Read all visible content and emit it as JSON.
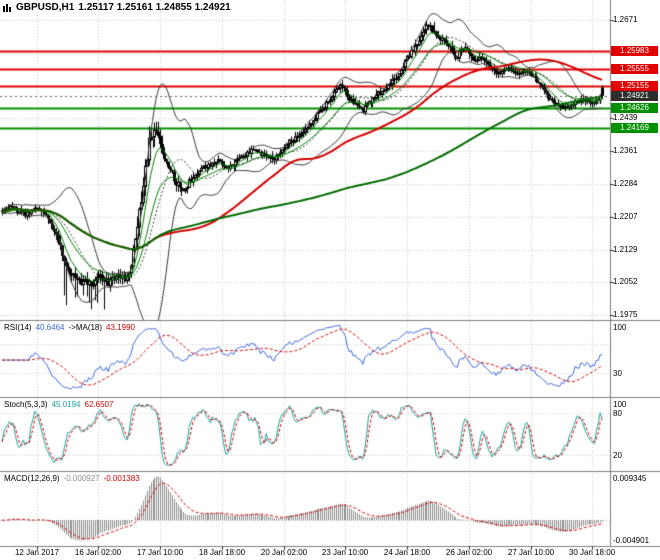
{
  "window": {
    "symbol_title": "GBPUSD,H1",
    "ohlc_text": "1.25117 1.25161 1.24855 1.24921"
  },
  "colors": {
    "background": "#ffffff",
    "grid": "#c8c8c8",
    "separator": "#7f7f7f",
    "text": "#000000",
    "candle_outline": "#000000",
    "bull_fill": "#ffffff",
    "bear_fill": "#000000",
    "bollinger": "#3a3a3a",
    "ma_red": "#d40000",
    "ma_green_fast": "#008000",
    "ma_green_slow": "#006b00",
    "resistance_line": "#e00000",
    "support_line": "#009000",
    "current_badge": "#2d2d2d",
    "rsi_line": "#4169e1",
    "rsi_ma_line": "#d40000",
    "stoch_k_line": "#1fa39b",
    "stoch_d_line": "#d40000",
    "macd_histogram": "#8e8e8e",
    "macd_signal_line": "#d40000"
  },
  "chart_data": {
    "type": "candlestick",
    "symbol": "GBPUSD",
    "timeframe": "H1",
    "bars": 312,
    "current_ohlc": {
      "open": 1.25117,
      "high": 1.25161,
      "low": 1.24855,
      "close": 1.24921
    },
    "levels": {
      "resistance": [
        "1.25983",
        "1.25555",
        "1.25155"
      ],
      "current": "1.24921",
      "support": [
        "1.24626",
        "1.24169"
      ]
    },
    "y_axis_labels": [
      "1.2671",
      "1.2594",
      "1.2516",
      "1.2439",
      "1.2361",
      "1.2284",
      "1.2207",
      "1.2129",
      "1.2052",
      "1.1975"
    ],
    "x_axis_labels": [
      "12 Jan 2017",
      "16 Jan 02:00",
      "17 Jan 10:00",
      "18 Jan 18:00",
      "20 Jan 02:00",
      "23 Jan 10:00",
      "24 Jan 18:00",
      "26 Jan 02:00",
      "27 Jan 10:00",
      "30 Jan 18:00"
    ],
    "x_tick_bars": [
      18,
      50,
      82,
      114,
      146,
      178,
      210,
      242,
      274,
      306
    ],
    "price_path": [
      [
        0.0,
        1.2218
      ],
      [
        0.018,
        1.223
      ],
      [
        0.04,
        1.2212
      ],
      [
        0.06,
        1.2228
      ],
      [
        0.082,
        1.22
      ],
      [
        0.095,
        1.2152
      ],
      [
        0.11,
        1.2092
      ],
      [
        0.125,
        1.206
      ],
      [
        0.15,
        1.2046
      ],
      [
        0.165,
        1.2066
      ],
      [
        0.18,
        1.2052
      ],
      [
        0.195,
        1.2072
      ],
      [
        0.21,
        1.2062
      ],
      [
        0.218,
        1.2092
      ],
      [
        0.228,
        1.218
      ],
      [
        0.238,
        1.2302
      ],
      [
        0.248,
        1.2392
      ],
      [
        0.256,
        1.241
      ],
      [
        0.266,
        1.2372
      ],
      [
        0.278,
        1.233
      ],
      [
        0.292,
        1.2284
      ],
      [
        0.306,
        1.2272
      ],
      [
        0.322,
        1.2304
      ],
      [
        0.342,
        1.2324
      ],
      [
        0.362,
        1.234
      ],
      [
        0.378,
        1.2318
      ],
      [
        0.398,
        1.2344
      ],
      [
        0.418,
        1.2364
      ],
      [
        0.438,
        1.2352
      ],
      [
        0.456,
        1.2342
      ],
      [
        0.472,
        1.2374
      ],
      [
        0.492,
        1.2394
      ],
      [
        0.512,
        1.2424
      ],
      [
        0.532,
        1.2456
      ],
      [
        0.552,
        1.2494
      ],
      [
        0.566,
        1.252
      ],
      [
        0.582,
        1.2482
      ],
      [
        0.602,
        1.2458
      ],
      [
        0.622,
        1.249
      ],
      [
        0.642,
        1.2514
      ],
      [
        0.662,
        1.2544
      ],
      [
        0.682,
        1.2594
      ],
      [
        0.7,
        1.2632
      ],
      [
        0.71,
        1.2656
      ],
      [
        0.72,
        1.2646
      ],
      [
        0.732,
        1.2626
      ],
      [
        0.745,
        1.2606
      ],
      [
        0.758,
        1.2584
      ],
      [
        0.772,
        1.2604
      ],
      [
        0.786,
        1.2574
      ],
      [
        0.8,
        1.2584
      ],
      [
        0.814,
        1.2556
      ],
      [
        0.828,
        1.2546
      ],
      [
        0.842,
        1.256
      ],
      [
        0.856,
        1.2542
      ],
      [
        0.87,
        1.2554
      ],
      [
        0.884,
        1.2538
      ],
      [
        0.898,
        1.252
      ],
      [
        0.91,
        1.2488
      ],
      [
        0.925,
        1.2472
      ],
      [
        0.94,
        1.2462
      ],
      [
        0.955,
        1.2476
      ],
      [
        0.97,
        1.2482
      ],
      [
        0.985,
        1.2474
      ],
      [
        1.0,
        1.2492
      ]
    ],
    "volatility": [
      [
        0,
        0.001
      ],
      [
        0.09,
        0.0013
      ],
      [
        0.1,
        0.0018
      ],
      [
        0.21,
        0.0018
      ],
      [
        0.23,
        0.0034
      ],
      [
        0.26,
        0.003
      ],
      [
        0.28,
        0.0016
      ],
      [
        0.35,
        0.0011
      ],
      [
        0.55,
        0.0011
      ],
      [
        0.66,
        0.0013
      ],
      [
        0.73,
        0.0014
      ],
      [
        0.8,
        0.0011
      ],
      [
        0.9,
        0.001
      ],
      [
        1,
        0.0009
      ]
    ],
    "wick_events": [
      {
        "from": 0.1,
        "to": 0.19,
        "low": 1.1988,
        "prob": 0.22
      },
      {
        "from": 0.12,
        "to": 0.165,
        "low": 1.2004,
        "prob": 0.3
      },
      {
        "from": 0.7,
        "to": 0.718,
        "high": 1.267,
        "prob": 0.6
      },
      {
        "from": 0.928,
        "to": 0.952,
        "low": 1.2448,
        "prob": 0.3
      }
    ],
    "indicators": {
      "rsi": {
        "name": "RSI(14)",
        "value": "40.6464",
        "ma_name": "->MA(18)",
        "ma_value": "43.1990",
        "scale_labels": [
          "100",
          "30"
        ],
        "scale_values": [
          100,
          30
        ],
        "level_lines": [
          30,
          70
        ]
      },
      "stoch": {
        "name": "Stoch(5,3,3)",
        "k_value": "45.0194",
        "d_value": "62.6507",
        "scale_labels": [
          "100",
          "80",
          "20"
        ],
        "scale_values": [
          100,
          80,
          20
        ],
        "level_lines": [
          20,
          80
        ]
      },
      "macd": {
        "name": "MACD(12,26,9)",
        "value": "-0.000927",
        "signal_value": "-0.001383",
        "scale_labels": [
          "0.009345",
          "-0.004901"
        ],
        "axis_max": 0.009345,
        "axis_min": -0.004901
      }
    }
  }
}
